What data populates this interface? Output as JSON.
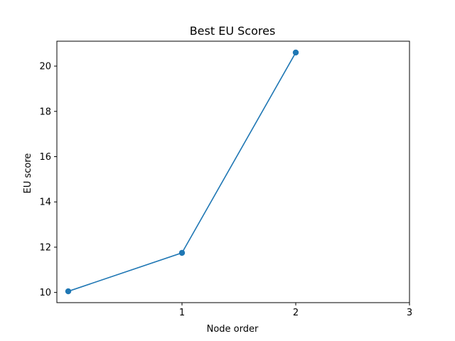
{
  "chart_data": {
    "type": "line",
    "title": "Best EU Scores",
    "xlabel": "Node order",
    "ylabel": "EU score",
    "x": [
      0,
      1,
      2
    ],
    "series": [
      {
        "values": [
          10.05,
          11.75,
          20.6
        ],
        "color": "#1f77b4",
        "marker": "circle"
      }
    ],
    "xlim": [
      -0.1,
      3
    ],
    "ylim": [
      9.55,
      21.1
    ],
    "xticks": [
      1,
      2,
      3
    ],
    "yticks": [
      10,
      12,
      14,
      16,
      18,
      20
    ],
    "grid": false
  }
}
